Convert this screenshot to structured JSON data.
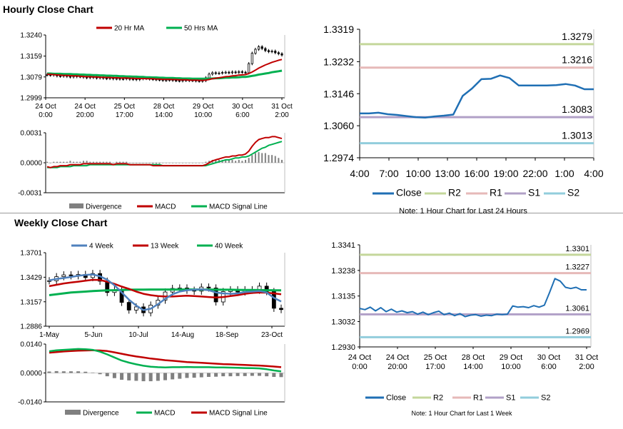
{
  "sections": {
    "hourly_title": "Hourly Close Chart",
    "weekly_title": "Weekly Close Chart"
  },
  "chart_data": [
    {
      "id": "hourly_price",
      "type": "candlestick",
      "legend": [
        "20 Hr MA",
        "50 Hrs MA"
      ],
      "colors": {
        "ma20": "#c00000",
        "ma50": "#00b050"
      },
      "ylim": [
        1.2999,
        1.324
      ],
      "yticks": [
        "1.3240",
        "1.3159",
        "1.3079",
        "1.2999"
      ],
      "xticks": [
        [
          "24 Oct",
          "0:00"
        ],
        [
          "24 Oct",
          "20:00"
        ],
        [
          "25 Oct",
          "17:00"
        ],
        [
          "28 Oct",
          "14:00"
        ],
        [
          "29 Oct",
          "10:00"
        ],
        [
          "30 Oct",
          "6:00"
        ],
        [
          "31 Oct",
          "2:00"
        ]
      ],
      "close": [
        1.3087,
        1.3086,
        1.3089,
        1.3083,
        1.3082,
        1.3085,
        1.3081,
        1.3079,
        1.3083,
        1.308,
        1.3081,
        1.3078,
        1.3076,
        1.3079,
        1.3077,
        1.3075,
        1.3078,
        1.3074,
        1.3073,
        1.3075,
        1.3072,
        1.3073,
        1.3071,
        1.3072,
        1.3074,
        1.307,
        1.3071,
        1.3069,
        1.3072,
        1.3075,
        1.3073,
        1.3071,
        1.307,
        1.3069,
        1.3068,
        1.3066,
        1.3067,
        1.3068,
        1.3066,
        1.3065,
        1.3064,
        1.3066,
        1.3067,
        1.3065,
        1.3066,
        1.3064,
        1.3063,
        1.3065,
        1.3076,
        1.309,
        1.3095,
        1.3093,
        1.3094,
        1.3096,
        1.3097,
        1.3095,
        1.3098,
        1.3096,
        1.3099,
        1.3097,
        1.3095,
        1.313,
        1.317,
        1.3185,
        1.3195,
        1.3188,
        1.318,
        1.3176,
        1.3178,
        1.3172,
        1.3168,
        1.3163
      ],
      "ma20": [
        1.309,
        1.3089,
        1.3088,
        1.3087,
        1.3086,
        1.3085,
        1.3085,
        1.3084,
        1.3083,
        1.3083,
        1.3082,
        1.3081,
        1.308,
        1.308,
        1.3079,
        1.3079,
        1.3078,
        1.3078,
        1.3077,
        1.3077,
        1.3076,
        1.3076,
        1.3075,
        1.3075,
        1.3075,
        1.3074,
        1.3074,
        1.3073,
        1.3073,
        1.3073,
        1.3072,
        1.3072,
        1.3072,
        1.3071,
        1.3071,
        1.307,
        1.307,
        1.307,
        1.3069,
        1.3069,
        1.3068,
        1.3068,
        1.3068,
        1.3067,
        1.3067,
        1.3067,
        1.3066,
        1.3066,
        1.3067,
        1.3069,
        1.3072,
        1.3074,
        1.3076,
        1.3078,
        1.308,
        1.3081,
        1.3083,
        1.3084,
        1.3086,
        1.3087,
        1.3088,
        1.3092,
        1.3098,
        1.3105,
        1.3113,
        1.3119,
        1.3125,
        1.313,
        1.3135,
        1.3139,
        1.3143,
        1.3146
      ],
      "ma50": [
        1.3092,
        1.3092,
        1.3091,
        1.3091,
        1.3091,
        1.309,
        1.309,
        1.309,
        1.3089,
        1.3089,
        1.3088,
        1.3088,
        1.3087,
        1.3087,
        1.3086,
        1.3086,
        1.3085,
        1.3085,
        1.3084,
        1.3084,
        1.3083,
        1.3083,
        1.3082,
        1.3082,
        1.3081,
        1.3081,
        1.308,
        1.308,
        1.3079,
        1.3079,
        1.3078,
        1.3078,
        1.3077,
        1.3077,
        1.3076,
        1.3076,
        1.3075,
        1.3075,
        1.3075,
        1.3074,
        1.3074,
        1.3073,
        1.3073,
        1.3073,
        1.3072,
        1.3072,
        1.3072,
        1.3072,
        1.3072,
        1.3073,
        1.3073,
        1.3074,
        1.3074,
        1.3075,
        1.3076,
        1.3076,
        1.3077,
        1.3077,
        1.3078,
        1.3079,
        1.3079,
        1.3081,
        1.3083,
        1.3085,
        1.3088,
        1.309,
        1.3092,
        1.3094,
        1.3097,
        1.3099,
        1.3101,
        1.3103
      ]
    },
    {
      "id": "hourly_macd",
      "type": "line+bar",
      "legend": [
        "Divergence",
        "MACD",
        "MACD Signal Line"
      ],
      "colors": {
        "divergence": "#808080",
        "macd": "#c00000",
        "signal": "#00b050"
      },
      "ylim": [
        -0.0031,
        0.0031
      ],
      "yticks": [
        "0.0031",
        "0.0000",
        "-0.0031"
      ],
      "macd": [
        -0.0004,
        -0.0005,
        -0.0004,
        -0.0004,
        -0.0003,
        -0.0003,
        -0.0003,
        -0.0002,
        -0.0002,
        -0.0002,
        -0.0002,
        -0.0001,
        -0.0001,
        -0.0001,
        -0.0001,
        -0.0001,
        -0.0001,
        -0.0001,
        -0.0001,
        -0.0001,
        -0.0002,
        -0.0001,
        -0.0001,
        -0.0001,
        -0.0001,
        -0.0002,
        -0.0002,
        -0.0002,
        -0.0002,
        -0.0002,
        -0.0002,
        -0.0002,
        -0.0003,
        -0.0003,
        -0.0003,
        -0.0003,
        -0.0003,
        -0.0003,
        -0.0003,
        -0.0003,
        -0.0003,
        -0.0003,
        -0.0003,
        -0.0003,
        -0.0003,
        -0.0003,
        -0.0003,
        -0.0003,
        -0.0002,
        0.0,
        0.0002,
        0.0003,
        0.0004,
        0.0005,
        0.0006,
        0.0006,
        0.0007,
        0.0007,
        0.0008,
        0.0008,
        0.0009,
        0.0012,
        0.0017,
        0.0021,
        0.0024,
        0.0025,
        0.0026,
        0.0026,
        0.0027,
        0.0027,
        0.0026,
        0.0025
      ],
      "signal": [
        -0.0005,
        -0.0005,
        -0.0005,
        -0.0005,
        -0.0004,
        -0.0004,
        -0.0004,
        -0.0004,
        -0.0003,
        -0.0003,
        -0.0003,
        -0.0003,
        -0.0003,
        -0.0002,
        -0.0002,
        -0.0002,
        -0.0002,
        -0.0002,
        -0.0002,
        -0.0002,
        -0.0002,
        -0.0002,
        -0.0002,
        -0.0002,
        -0.0002,
        -0.0002,
        -0.0002,
        -0.0002,
        -0.0002,
        -0.0002,
        -0.0002,
        -0.0002,
        -0.0002,
        -0.0002,
        -0.0002,
        -0.0003,
        -0.0003,
        -0.0003,
        -0.0003,
        -0.0003,
        -0.0003,
        -0.0003,
        -0.0003,
        -0.0003,
        -0.0003,
        -0.0003,
        -0.0003,
        -0.0003,
        -0.0003,
        -0.0002,
        -0.0001,
        0.0,
        0.0001,
        0.0002,
        0.0003,
        0.0003,
        0.0004,
        0.0005,
        0.0005,
        0.0006,
        0.0006,
        0.0007,
        0.0009,
        0.0011,
        0.0013,
        0.0015,
        0.0016,
        0.0018,
        0.0019,
        0.002,
        0.0021,
        0.0022
      ],
      "divergence": [
        0.0001,
        0.0,
        0.0001,
        0.0001,
        0.0001,
        0.0001,
        0.0001,
        0.0002,
        0.0001,
        0.0001,
        0.0001,
        0.0002,
        0.0002,
        0.0001,
        0.0001,
        0.0001,
        0.0001,
        0.0001,
        0.0001,
        0.0001,
        0.0,
        0.0001,
        0.0001,
        0.0001,
        0.0001,
        0.0,
        0.0,
        0.0,
        0.0,
        0.0,
        0.0,
        0.0,
        -0.0001,
        -0.0001,
        -0.0001,
        0.0,
        0.0,
        0.0,
        0.0,
        0.0,
        0.0,
        0.0,
        0.0,
        0.0,
        0.0,
        0.0,
        0.0,
        0.0,
        0.0001,
        0.0002,
        0.0003,
        0.0003,
        0.0003,
        0.0003,
        0.0003,
        0.0003,
        0.0003,
        0.0002,
        0.0003,
        0.0002,
        0.0003,
        0.0005,
        0.0008,
        0.001,
        0.0011,
        0.001,
        0.001,
        0.0008,
        0.0008,
        0.0007,
        0.0005,
        0.0003
      ]
    },
    {
      "id": "hourly_24h",
      "type": "line",
      "legend": [
        "Close",
        "R2",
        "R1",
        "S1",
        "S2"
      ],
      "colors": {
        "close": "#1f6fb4",
        "r2": "#c4d79b",
        "r1": "#e6b9b8",
        "s1": "#b1a0c7",
        "s2": "#92cddc"
      },
      "ylim": [
        1.2974,
        1.3319
      ],
      "yticks": [
        "1.3319",
        "1.3232",
        "1.3146",
        "1.3060",
        "1.2974"
      ],
      "xticks": [
        "4:00",
        "7:00",
        "10:00",
        "13:00",
        "16:00",
        "19:00",
        "22:00",
        "1:00",
        "4:00"
      ],
      "levels": {
        "r2": 1.3279,
        "r1": 1.3216,
        "s1": 1.3083,
        "s2": 1.3013
      },
      "level_labels": {
        "r2": "1.3279",
        "r1": "1.3216",
        "s1": "1.3083",
        "s2": "1.3013"
      },
      "close": [
        1.3093,
        1.3093,
        1.3095,
        1.3091,
        1.3089,
        1.3086,
        1.3083,
        1.3082,
        1.3085,
        1.3087,
        1.309,
        1.314,
        1.316,
        1.3185,
        1.3186,
        1.3195,
        1.3188,
        1.3168,
        1.3168,
        1.3168,
        1.3168,
        1.3169,
        1.3172,
        1.3168,
        1.3158,
        1.3158
      ],
      "note": "Note: 1 Hour Chart for Last 24 Hours"
    },
    {
      "id": "weekly_price",
      "type": "candlestick",
      "legend": [
        "4 Week",
        "13 Week",
        "40 Week"
      ],
      "colors": {
        "w4": "#4f81bd",
        "w13": "#c00000",
        "w40": "#00b050"
      },
      "ylim": [
        1.2886,
        1.3701
      ],
      "yticks": [
        "1.3701",
        "1.3429",
        "1.3157",
        "1.2886"
      ],
      "xticks": [
        "1-May",
        "5-Jun",
        "10-Jul",
        "14-Aug",
        "18-Sep",
        "23-Oct"
      ],
      "close": [
        1.339,
        1.3435,
        1.3455,
        1.3445,
        1.346,
        1.3425,
        1.347,
        1.3385,
        1.326,
        1.329,
        1.315,
        1.3065,
        1.31,
        1.3035,
        1.312,
        1.3175,
        1.3265,
        1.3305,
        1.331,
        1.3285,
        1.3275,
        1.332,
        1.331,
        1.3155,
        1.327,
        1.329,
        1.3265,
        1.329,
        1.3285,
        1.333,
        1.327,
        1.3085,
        1.307
      ],
      "w4": [
        1.3395,
        1.341,
        1.342,
        1.3432,
        1.3445,
        1.3455,
        1.346,
        1.344,
        1.34,
        1.334,
        1.326,
        1.318,
        1.3115,
        1.3065,
        1.308,
        1.313,
        1.319,
        1.324,
        1.327,
        1.3285,
        1.329,
        1.3295,
        1.3285,
        1.326,
        1.325,
        1.3245,
        1.325,
        1.3265,
        1.327,
        1.3275,
        1.326,
        1.32,
        1.316
      ],
      "w13": [
        1.333,
        1.3345,
        1.336,
        1.337,
        1.338,
        1.339,
        1.34,
        1.3398,
        1.338,
        1.3355,
        1.3325,
        1.33,
        1.327,
        1.3245,
        1.323,
        1.322,
        1.3215,
        1.3215,
        1.322,
        1.3225,
        1.322,
        1.3215,
        1.321,
        1.3205,
        1.321,
        1.322,
        1.323,
        1.3245,
        1.3255,
        1.326,
        1.3258,
        1.325,
        1.324
      ],
      "w40": [
        1.323,
        1.324,
        1.325,
        1.326,
        1.3265,
        1.327,
        1.3275,
        1.328,
        1.3283,
        1.3285,
        1.3288,
        1.329,
        1.3292,
        1.3292,
        1.3293,
        1.3293,
        1.3293,
        1.3293,
        1.3293,
        1.3293,
        1.3293,
        1.3292,
        1.3292,
        1.3291,
        1.329,
        1.329,
        1.3289,
        1.3288,
        1.3287,
        1.3286,
        1.3285,
        1.3284,
        1.3283
      ]
    },
    {
      "id": "weekly_macd",
      "type": "line+bar",
      "legend": [
        "Divergence",
        "MACD",
        "MACD Signal Line"
      ],
      "colors": {
        "divergence": "#808080",
        "macd": "#00b050",
        "signal": "#c00000"
      },
      "ylim": [
        -0.014,
        0.014
      ],
      "yticks": [
        "0.0140",
        "0.0000",
        "-0.0140"
      ],
      "macd": [
        0.0105,
        0.011,
        0.0112,
        0.0114,
        0.0116,
        0.0115,
        0.0112,
        0.0103,
        0.009,
        0.0075,
        0.006,
        0.005,
        0.0042,
        0.0035,
        0.003,
        0.0028,
        0.0027,
        0.0028,
        0.0028,
        0.0029,
        0.0028,
        0.0028,
        0.0028,
        0.0027,
        0.0027,
        0.0026,
        0.0025,
        0.0024,
        0.0023,
        0.0022,
        0.0018,
        0.0012,
        0.0008
      ],
      "signal": [
        0.0098,
        0.0101,
        0.0104,
        0.0106,
        0.0108,
        0.0109,
        0.011,
        0.0109,
        0.0106,
        0.01,
        0.0093,
        0.0086,
        0.008,
        0.0075,
        0.007,
        0.0066,
        0.0062,
        0.0059,
        0.0056,
        0.0053,
        0.0051,
        0.0049,
        0.0047,
        0.0045,
        0.0043,
        0.0042,
        0.004,
        0.0039,
        0.0037,
        0.0036,
        0.0034,
        0.0031,
        0.0028
      ],
      "divergence": [
        0.0007,
        0.0009,
        0.0008,
        0.0008,
        0.0008,
        0.0006,
        0.0002,
        -0.0006,
        -0.0016,
        -0.0025,
        -0.0033,
        -0.0036,
        -0.0038,
        -0.004,
        -0.004,
        -0.0038,
        -0.0035,
        -0.0031,
        -0.0028,
        -0.0024,
        -0.0023,
        -0.0021,
        -0.0019,
        -0.0018,
        -0.0016,
        -0.0016,
        -0.0015,
        -0.0015,
        -0.0014,
        -0.0014,
        -0.0016,
        -0.0019,
        -0.002
      ]
    },
    {
      "id": "weekly_1w",
      "type": "line",
      "legend": [
        "Close",
        "R2",
        "R1",
        "S1",
        "S2"
      ],
      "colors": {
        "close": "#1f6fb4",
        "r2": "#c4d79b",
        "r1": "#e6b9b8",
        "s1": "#b1a0c7",
        "s2": "#92cddc"
      },
      "ylim": [
        1.293,
        1.3341
      ],
      "yticks": [
        "1.3341",
        "1.3238",
        "1.3135",
        "1.3032",
        "1.2930"
      ],
      "xticks": [
        [
          "24 Oct",
          "0:00"
        ],
        [
          "24 Oct",
          "20:00"
        ],
        [
          "25 Oct",
          "17:00"
        ],
        [
          "28 Oct",
          "14:00"
        ],
        [
          "29 Oct",
          "10:00"
        ],
        [
          "30 Oct",
          "6:00"
        ],
        [
          "31 Oct",
          "2:00"
        ]
      ],
      "levels": {
        "r2": 1.3301,
        "r1": 1.3227,
        "s1": 1.3061,
        "s2": 1.2969
      },
      "level_labels": {
        "r2": "1.3301",
        "r1": "1.3227",
        "s1": "1.3061",
        "s2": "1.2969"
      },
      "close": [
        1.3085,
        1.308,
        1.309,
        1.3075,
        1.3088,
        1.3072,
        1.3082,
        1.307,
        1.3075,
        1.3068,
        1.3072,
        1.3062,
        1.307,
        1.306,
        1.3068,
        1.3074,
        1.306,
        1.3066,
        1.3056,
        1.3064,
        1.3052,
        1.3058,
        1.306,
        1.3054,
        1.3058,
        1.3056,
        1.3062,
        1.306,
        1.3062,
        1.3095,
        1.309,
        1.3092,
        1.3088,
        1.3096,
        1.309,
        1.3098,
        1.315,
        1.3205,
        1.3195,
        1.317,
        1.3165,
        1.317,
        1.316,
        1.316
      ],
      "note": "Note: 1 Hour Chart for Last 1 Week"
    }
  ]
}
